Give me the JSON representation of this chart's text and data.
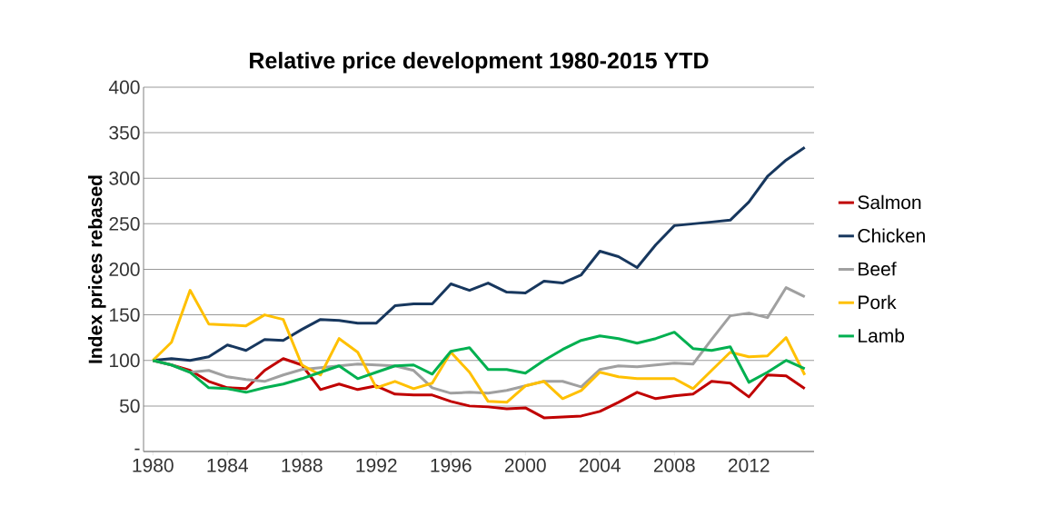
{
  "chart_data": {
    "type": "line",
    "title": "Relative price development 1980-2015 YTD",
    "ylabel": "Index prices rebased",
    "x": [
      1980,
      1981,
      1982,
      1983,
      1984,
      1985,
      1986,
      1987,
      1988,
      1989,
      1990,
      1991,
      1992,
      1993,
      1994,
      1995,
      1996,
      1997,
      1998,
      1999,
      2000,
      2001,
      2002,
      2003,
      2004,
      2005,
      2006,
      2007,
      2008,
      2009,
      2010,
      2011,
      2012,
      2013,
      2014,
      2015
    ],
    "xlim": [
      1979.5,
      2015.5
    ],
    "xticks": [
      1980,
      1984,
      1988,
      1992,
      1996,
      2000,
      2004,
      2008,
      2012
    ],
    "ylim": [
      0,
      400
    ],
    "yticks": [
      {
        "value": 0,
        "label": "-"
      },
      50,
      100,
      150,
      200,
      250,
      300,
      350,
      400
    ],
    "grid": "y",
    "legend": "right",
    "marker": "none",
    "line_style": "solid",
    "series": [
      {
        "name": "Salmon",
        "color": "#c00000",
        "values": [
          100,
          95,
          89,
          77,
          70,
          69,
          89,
          102,
          95,
          68,
          74,
          68,
          72,
          63,
          62,
          62,
          55,
          50,
          49,
          47,
          48,
          37,
          38,
          39,
          44,
          54,
          65,
          58,
          61,
          63,
          77,
          75,
          60,
          84,
          83,
          69
        ]
      },
      {
        "name": "Chicken",
        "color": "#17375e",
        "values": [
          100,
          102,
          100,
          104,
          117,
          111,
          123,
          122,
          134,
          145,
          144,
          141,
          141,
          160,
          162,
          162,
          184,
          177,
          185,
          175,
          174,
          187,
          185,
          194,
          220,
          214,
          202,
          227,
          248,
          250,
          252,
          254,
          274,
          302,
          320,
          334
        ]
      },
      {
        "name": "Beef",
        "color": "#a0a0a0",
        "values": [
          100,
          95,
          87,
          89,
          82,
          79,
          77,
          84,
          90,
          92,
          94,
          96,
          95,
          94,
          89,
          70,
          64,
          65,
          64,
          67,
          72,
          77,
          77,
          71,
          90,
          94,
          93,
          95,
          97,
          96,
          123,
          149,
          152,
          147,
          180,
          170
        ]
      },
      {
        "name": "Pork",
        "color": "#ffc000",
        "values": [
          100,
          120,
          177,
          140,
          139,
          138,
          150,
          145,
          95,
          84,
          124,
          109,
          70,
          77,
          69,
          75,
          109,
          87,
          55,
          54,
          72,
          77,
          58,
          67,
          87,
          82,
          80,
          80,
          80,
          69,
          89,
          109,
          104,
          105,
          125,
          84
        ]
      },
      {
        "name": "Lamb",
        "color": "#00b050",
        "values": [
          100,
          95,
          87,
          70,
          69,
          65,
          70,
          74,
          80,
          87,
          94,
          80,
          87,
          94,
          95,
          85,
          110,
          114,
          90,
          90,
          86,
          100,
          112,
          122,
          127,
          124,
          119,
          124,
          131,
          113,
          111,
          115,
          76,
          87,
          100,
          91
        ]
      }
    ]
  }
}
